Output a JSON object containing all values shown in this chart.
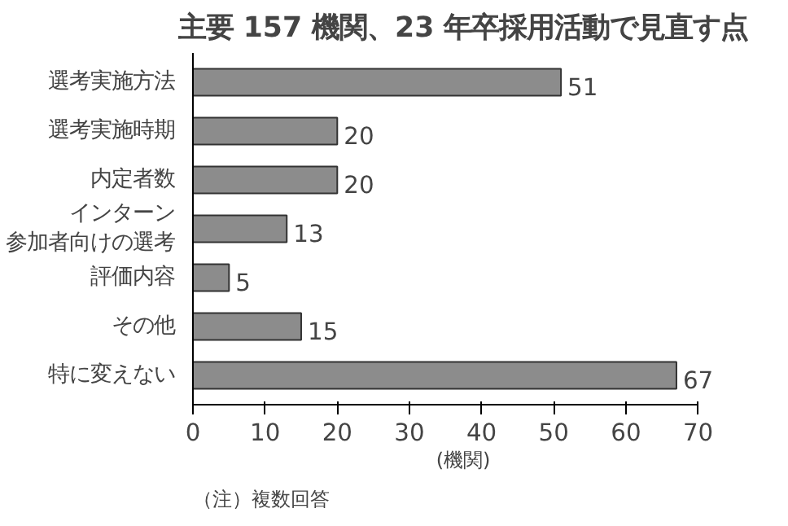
{
  "chart_data": {
    "type": "bar",
    "orientation": "horizontal",
    "title": "主要 157 機関、23 年卒採用活動で見直す点",
    "categories": [
      "選考実施方法",
      "選考実施時期",
      "内定者数",
      "インターン参加者向けの選考",
      "評価内容",
      "その他",
      "特に変えない"
    ],
    "values": [
      51,
      20,
      20,
      13,
      5,
      15,
      67
    ],
    "color": "#8c8c8c",
    "data_labels": true,
    "xlim": [
      0,
      70
    ],
    "xticks": [
      0,
      10,
      20,
      30,
      40,
      50,
      60,
      70
    ],
    "xlabel": "(機関)",
    "annotations": [
      "（注）複数回答"
    ],
    "grid": false
  }
}
